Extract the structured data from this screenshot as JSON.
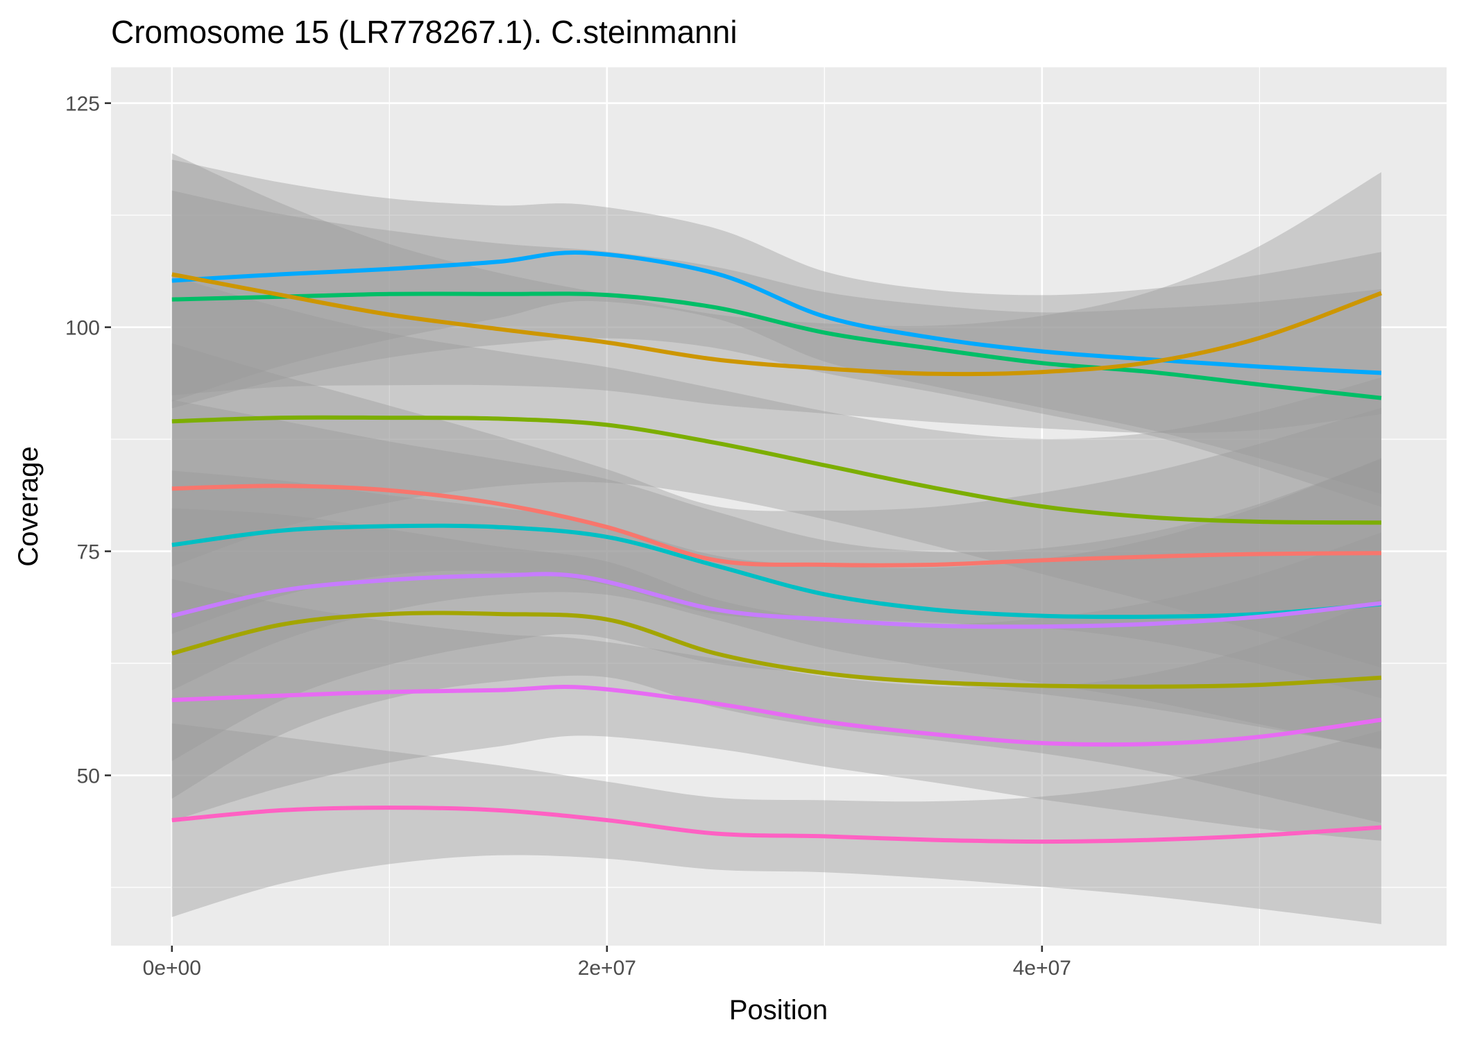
{
  "chart_data": {
    "type": "line",
    "title": "Cromosome 15 (LR778267.1). C.steinmanni",
    "xlabel": "Position",
    "ylabel": "Coverage",
    "xlim": [
      -2800000,
      58600000
    ],
    "ylim": [
      31,
      129
    ],
    "x_ticks": [
      0,
      20000000,
      40000000
    ],
    "x_tick_labels": [
      "0e+00",
      "2e+07",
      "4e+07"
    ],
    "y_ticks": [
      50,
      75,
      100,
      125
    ],
    "y_tick_labels": [
      "50",
      "75",
      "100",
      "125"
    ],
    "grid": true,
    "legend": "none",
    "colors": {
      "panel_background": "#ebebeb",
      "grid": "#ffffff",
      "ribbon": "#999999"
    },
    "series": [
      {
        "color": "#00A9FF",
        "ribbon_half_width": 5,
        "x": [
          0,
          5000000,
          10000000,
          15000000,
          19000000,
          25000000,
          30000000,
          35000000,
          40000000,
          45000000,
          50000000,
          55600000
        ],
        "y": [
          105.2,
          105.9,
          106.5,
          107.3,
          108.3,
          106.0,
          101.2,
          98.8,
          97.3,
          96.4,
          95.6,
          94.9
        ]
      },
      {
        "color": "#00BE67",
        "ribbon_half_width": 4.5,
        "x": [
          0,
          5000000,
          10000000,
          15000000,
          20000000,
          25000000,
          30000000,
          35000000,
          40000000,
          45000000,
          50000000,
          55600000
        ],
        "y": [
          103.1,
          103.4,
          103.7,
          103.7,
          103.6,
          102.2,
          99.4,
          97.6,
          96.0,
          95.0,
          93.6,
          92.1
        ]
      },
      {
        "color": "#CD9600",
        "ribbon_half_width": 5,
        "x": [
          0,
          5000000,
          10000000,
          15000000,
          20000000,
          25000000,
          30000000,
          35000000,
          40000000,
          45000000,
          50000000,
          55600000
        ],
        "y": [
          105.9,
          103.6,
          101.4,
          99.8,
          98.3,
          96.4,
          95.4,
          94.8,
          95.0,
          96.1,
          98.8,
          103.8
        ]
      },
      {
        "color": "#7CAE00",
        "ribbon_half_width": 6,
        "x": [
          0,
          5000000,
          10000000,
          15000000,
          20000000,
          25000000,
          30000000,
          35000000,
          40000000,
          45000000,
          50000000,
          55600000
        ],
        "y": [
          89.5,
          89.9,
          89.9,
          89.8,
          89.1,
          87.1,
          84.6,
          82.1,
          80.0,
          78.8,
          78.3,
          78.2
        ]
      },
      {
        "color": "#F8766D",
        "ribbon_half_width": 6,
        "x": [
          0,
          5000000,
          10000000,
          15000000,
          20000000,
          25000000,
          30000000,
          35000000,
          40000000,
          45000000,
          50000000,
          55600000
        ],
        "y": [
          82.0,
          82.3,
          81.8,
          80.3,
          77.7,
          74.0,
          73.5,
          73.5,
          74.0,
          74.4,
          74.7,
          74.8
        ]
      },
      {
        "color": "#00BFC4",
        "ribbon_half_width": 6,
        "x": [
          0,
          5000000,
          10000000,
          15000000,
          20000000,
          25000000,
          30000000,
          35000000,
          40000000,
          45000000,
          50000000,
          55600000
        ],
        "y": [
          75.7,
          77.3,
          77.8,
          77.7,
          76.6,
          73.4,
          70.2,
          68.5,
          67.8,
          67.7,
          68.0,
          69.1
        ]
      },
      {
        "color": "#C77CFF",
        "ribbon_half_width": 6,
        "x": [
          0,
          5000000,
          10000000,
          15000000,
          19000000,
          25000000,
          30000000,
          35000000,
          40000000,
          45000000,
          50000000,
          55600000
        ],
        "y": [
          67.8,
          70.6,
          71.8,
          72.3,
          72.1,
          68.5,
          67.4,
          66.7,
          66.6,
          66.9,
          67.7,
          69.2
        ]
      },
      {
        "color": "#A3A500",
        "ribbon_half_width": 6,
        "x": [
          0,
          5000000,
          10000000,
          15000000,
          20000000,
          25000000,
          30000000,
          35000000,
          40000000,
          45000000,
          50000000,
          55600000
        ],
        "y": [
          63.6,
          66.8,
          68.0,
          68.0,
          67.4,
          63.6,
          61.4,
          60.4,
          60.0,
          59.9,
          60.1,
          60.9
        ]
      },
      {
        "color": "#E76BF3",
        "ribbon_half_width": 5,
        "x": [
          0,
          5000000,
          10000000,
          15000000,
          19000000,
          25000000,
          30000000,
          35000000,
          40000000,
          45000000,
          50000000,
          55600000
        ],
        "y": [
          58.4,
          58.9,
          59.3,
          59.5,
          59.8,
          58.0,
          56.0,
          54.6,
          53.6,
          53.5,
          54.3,
          56.2
        ]
      },
      {
        "color": "#FF61C3",
        "ribbon_half_width": 4,
        "x": [
          0,
          5000000,
          10000000,
          15000000,
          20000000,
          25000000,
          30000000,
          35000000,
          40000000,
          45000000,
          50000000,
          55600000
        ],
        "y": [
          45.0,
          46.1,
          46.4,
          46.1,
          45.0,
          43.5,
          43.2,
          42.8,
          42.6,
          42.8,
          43.3,
          44.2
        ]
      }
    ]
  }
}
